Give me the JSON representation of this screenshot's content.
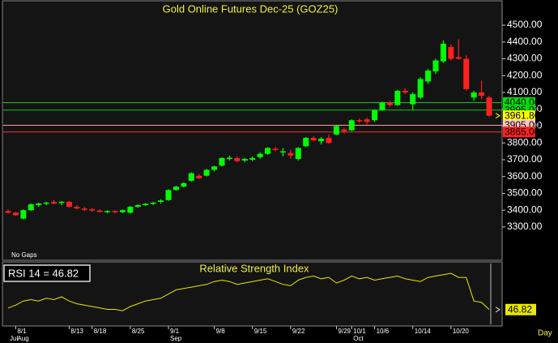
{
  "chart_data": [
    {
      "type": "candlestick",
      "title": "Gold Online Futures Dec-25 (GOZ25)",
      "note": "No Gaps",
      "period": "Day",
      "up_color": "#00ff00",
      "down_color": "#ff2020",
      "categories": [
        null,
        "8/1",
        null,
        null,
        null,
        null,
        null,
        null,
        "8/13",
        null,
        null,
        "8/18",
        null,
        null,
        null,
        null,
        "8/25",
        null,
        null,
        null,
        null,
        "9/1",
        null,
        null,
        null,
        null,
        null,
        "9/8",
        null,
        null,
        null,
        null,
        "9/15",
        null,
        null,
        null,
        null,
        "9/22",
        null,
        null,
        null,
        null,
        null,
        "9/29",
        null,
        "10/1",
        null,
        null,
        "10/6",
        null,
        null,
        null,
        null,
        "10/14",
        null,
        null,
        null,
        null,
        "10/20",
        null,
        null,
        null,
        null,
        null
      ],
      "months": [
        "Jul",
        "Aug",
        null,
        null,
        null,
        null,
        null,
        null,
        null,
        null,
        null,
        null,
        null,
        null,
        null,
        null,
        null,
        null,
        null,
        null,
        null,
        "Sep",
        null,
        null,
        null,
        null,
        null,
        null,
        null,
        null,
        null,
        null,
        null,
        null,
        null,
        null,
        null,
        null,
        null,
        null,
        null,
        null,
        null,
        null,
        null,
        "Oct",
        null,
        null,
        null,
        null,
        null,
        null,
        null,
        null,
        null,
        null,
        null,
        null,
        null,
        null,
        null,
        null,
        null,
        null
      ],
      "open": [
        3395,
        3385,
        3350,
        3400,
        3430,
        3440,
        3450,
        3445,
        3450,
        3420,
        3410,
        3405,
        3398,
        3388,
        3395,
        3388,
        3385,
        3420,
        3430,
        3438,
        3450,
        3460,
        3520,
        3540,
        3575,
        3605,
        3605,
        3640,
        3665,
        3705,
        3710,
        3695,
        3700,
        3715,
        3735,
        3765,
        3745,
        3740,
        3705,
        3780,
        3830,
        3810,
        3830,
        3850,
        3880,
        3875,
        3935,
        3940,
        3935,
        3995,
        4040,
        4025,
        4110,
        4030,
        4070,
        4165,
        4225,
        4285,
        4370,
        4310,
        4300,
        4070,
        4100,
        4070
      ],
      "high": [
        3405,
        3390,
        3405,
        3440,
        3445,
        3450,
        3460,
        3455,
        3455,
        3430,
        3420,
        3412,
        3405,
        3400,
        3400,
        3405,
        3425,
        3435,
        3442,
        3450,
        3465,
        3525,
        3545,
        3565,
        3625,
        3615,
        3645,
        3665,
        3715,
        3725,
        3720,
        3710,
        3720,
        3745,
        3775,
        3775,
        3770,
        3760,
        3775,
        3835,
        3840,
        3835,
        3850,
        3905,
        3890,
        3940,
        3945,
        3950,
        4000,
        4045,
        4050,
        4115,
        4125,
        4100,
        4190,
        4240,
        4300,
        4410,
        4385,
        4415,
        4320,
        4110,
        4170,
        4080
      ],
      "low": [
        3380,
        3365,
        3345,
        3395,
        3420,
        3430,
        3435,
        3430,
        3415,
        3405,
        3395,
        3390,
        3385,
        3382,
        3380,
        3382,
        3380,
        3415,
        3425,
        3430,
        3440,
        3455,
        3515,
        3535,
        3570,
        3585,
        3600,
        3630,
        3660,
        3695,
        3685,
        3685,
        3690,
        3705,
        3730,
        3750,
        3720,
        3705,
        3695,
        3775,
        3810,
        3790,
        3795,
        3845,
        3855,
        3870,
        3920,
        3910,
        3925,
        3990,
        4015,
        4020,
        4090,
        3995,
        4060,
        4150,
        4210,
        4275,
        4290,
        4295,
        4110,
        4050,
        4060,
        3955
      ],
      "close": [
        3385,
        3370,
        3400,
        3435,
        3440,
        3445,
        3440,
        3450,
        3420,
        3410,
        3405,
        3398,
        3390,
        3395,
        3390,
        3400,
        3420,
        3430,
        3438,
        3445,
        3458,
        3520,
        3540,
        3560,
        3620,
        3590,
        3640,
        3660,
        3710,
        3712,
        3692,
        3705,
        3710,
        3735,
        3770,
        3760,
        3750,
        3725,
        3770,
        3830,
        3815,
        3825,
        3800,
        3900,
        3870,
        3935,
        3930,
        3925,
        3995,
        4040,
        4025,
        4110,
        4100,
        4090,
        4180,
        4230,
        4290,
        4390,
        4300,
        4300,
        4120,
        4100,
        4080,
        3961.8
      ],
      "ylim": [
        3107,
        4640
      ],
      "yticks": [
        {
          "value": 3300,
          "label": "3300.00"
        },
        {
          "value": 3400,
          "label": "3400.00"
        },
        {
          "value": 3500,
          "label": "3500.00"
        },
        {
          "value": 3600,
          "label": "3600.00"
        },
        {
          "value": 3700,
          "label": "3700.00"
        },
        {
          "value": 3800,
          "label": "3800.00"
        },
        {
          "value": 3900,
          "label": "3900.00"
        },
        {
          "value": 4000,
          "label": "4000.00"
        },
        {
          "value": 4100,
          "label": "4100.00"
        },
        {
          "value": 4200,
          "label": "4200.00"
        },
        {
          "value": 4300,
          "label": "4300.00"
        },
        {
          "value": 4400,
          "label": "4400.00"
        },
        {
          "value": 4500,
          "label": "4500.00"
        }
      ],
      "levels": [
        {
          "value": 4040,
          "label": "4040.00",
          "color": "#00d000",
          "box": "#00e000",
          "line": true
        },
        {
          "value": 3995,
          "label": "3995.00",
          "color": "#00d000",
          "box": "#00e000",
          "line": true
        },
        {
          "value": 3961.8,
          "label": "3961.80",
          "color": "#ffff00",
          "box": "#ffff00",
          "line": false
        },
        {
          "value": 3905,
          "label": "3905.00",
          "color": "#ff9c9c",
          "box": "#ffc4c4",
          "line": true
        },
        {
          "value": 3865,
          "label": "3865.00",
          "color": "#ff3030",
          "box": "#ff2020",
          "line": true
        }
      ]
    },
    {
      "type": "line",
      "title": "Relative Strength Index",
      "label": "RSI 14 = 46.82",
      "color": "#e8e800",
      "values": [
        48,
        50,
        53,
        54,
        53,
        55,
        54,
        56,
        53,
        51,
        50,
        49,
        48,
        47,
        47,
        46,
        49,
        51,
        53,
        54,
        55,
        58,
        61,
        62,
        63,
        64,
        65,
        67,
        68,
        67,
        65,
        66,
        67,
        68,
        69,
        67,
        65,
        64,
        68,
        70,
        71,
        69,
        70,
        66,
        68,
        71,
        69,
        70,
        68,
        69,
        70,
        71,
        69,
        68,
        67,
        70,
        71,
        72,
        73,
        70,
        70,
        53,
        52,
        46.82
      ],
      "ylim": [
        35,
        80
      ]
    }
  ]
}
